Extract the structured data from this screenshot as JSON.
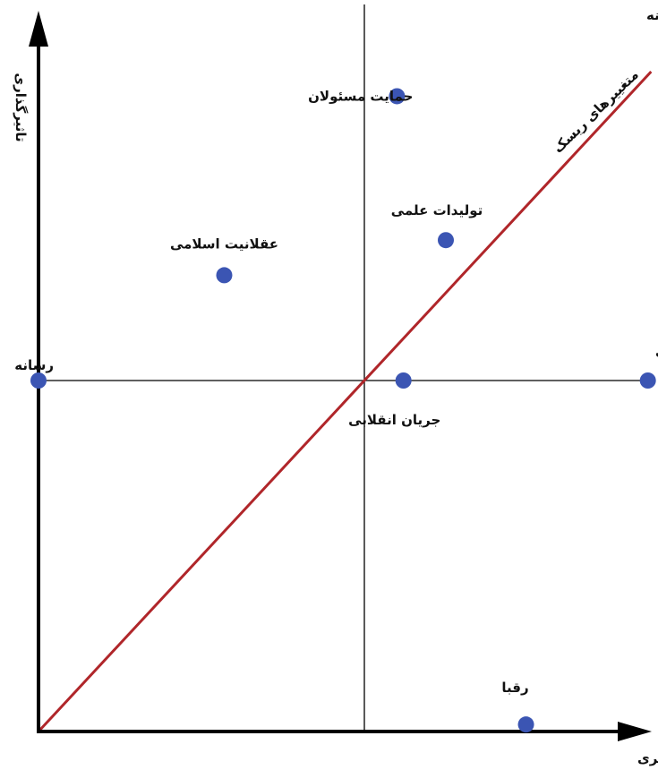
{
  "axes": {
    "x_label": "تاثیرپذیری",
    "y_label": "تاثیرگذاری"
  },
  "annotations": {
    "dual_variables": "متغییرهای دوگانه",
    "risk_variables": "متغییرهای ریسک"
  },
  "colors": {
    "point": "#3b55b3",
    "diagonal": "#b0262a",
    "axis": "#000000"
  },
  "chart_data": {
    "type": "scatter",
    "xlim": [
      0,
      100
    ],
    "ylim": [
      0,
      100
    ],
    "quadrant_lines": {
      "x": 50,
      "y": 50
    },
    "diagonal": {
      "from": [
        0,
        0
      ],
      "to": [
        94,
        94
      ]
    },
    "points": [
      {
        "label": "رسانه",
        "x": 0,
        "y": 50
      },
      {
        "label": "عقلانیت اسلامی",
        "x": 28.5,
        "y": 65
      },
      {
        "label": "حمایت مسئولان",
        "x": 55,
        "y": 90.5
      },
      {
        "label": "تولیدات علمی",
        "x": 62.5,
        "y": 70
      },
      {
        "label": "جریان انقلابی",
        "x": 56,
        "y": 50
      },
      {
        "label": "دینداری عمومی",
        "x": 93.5,
        "y": 50
      },
      {
        "label": "رقبا",
        "x": 74.8,
        "y": 1
      }
    ]
  }
}
